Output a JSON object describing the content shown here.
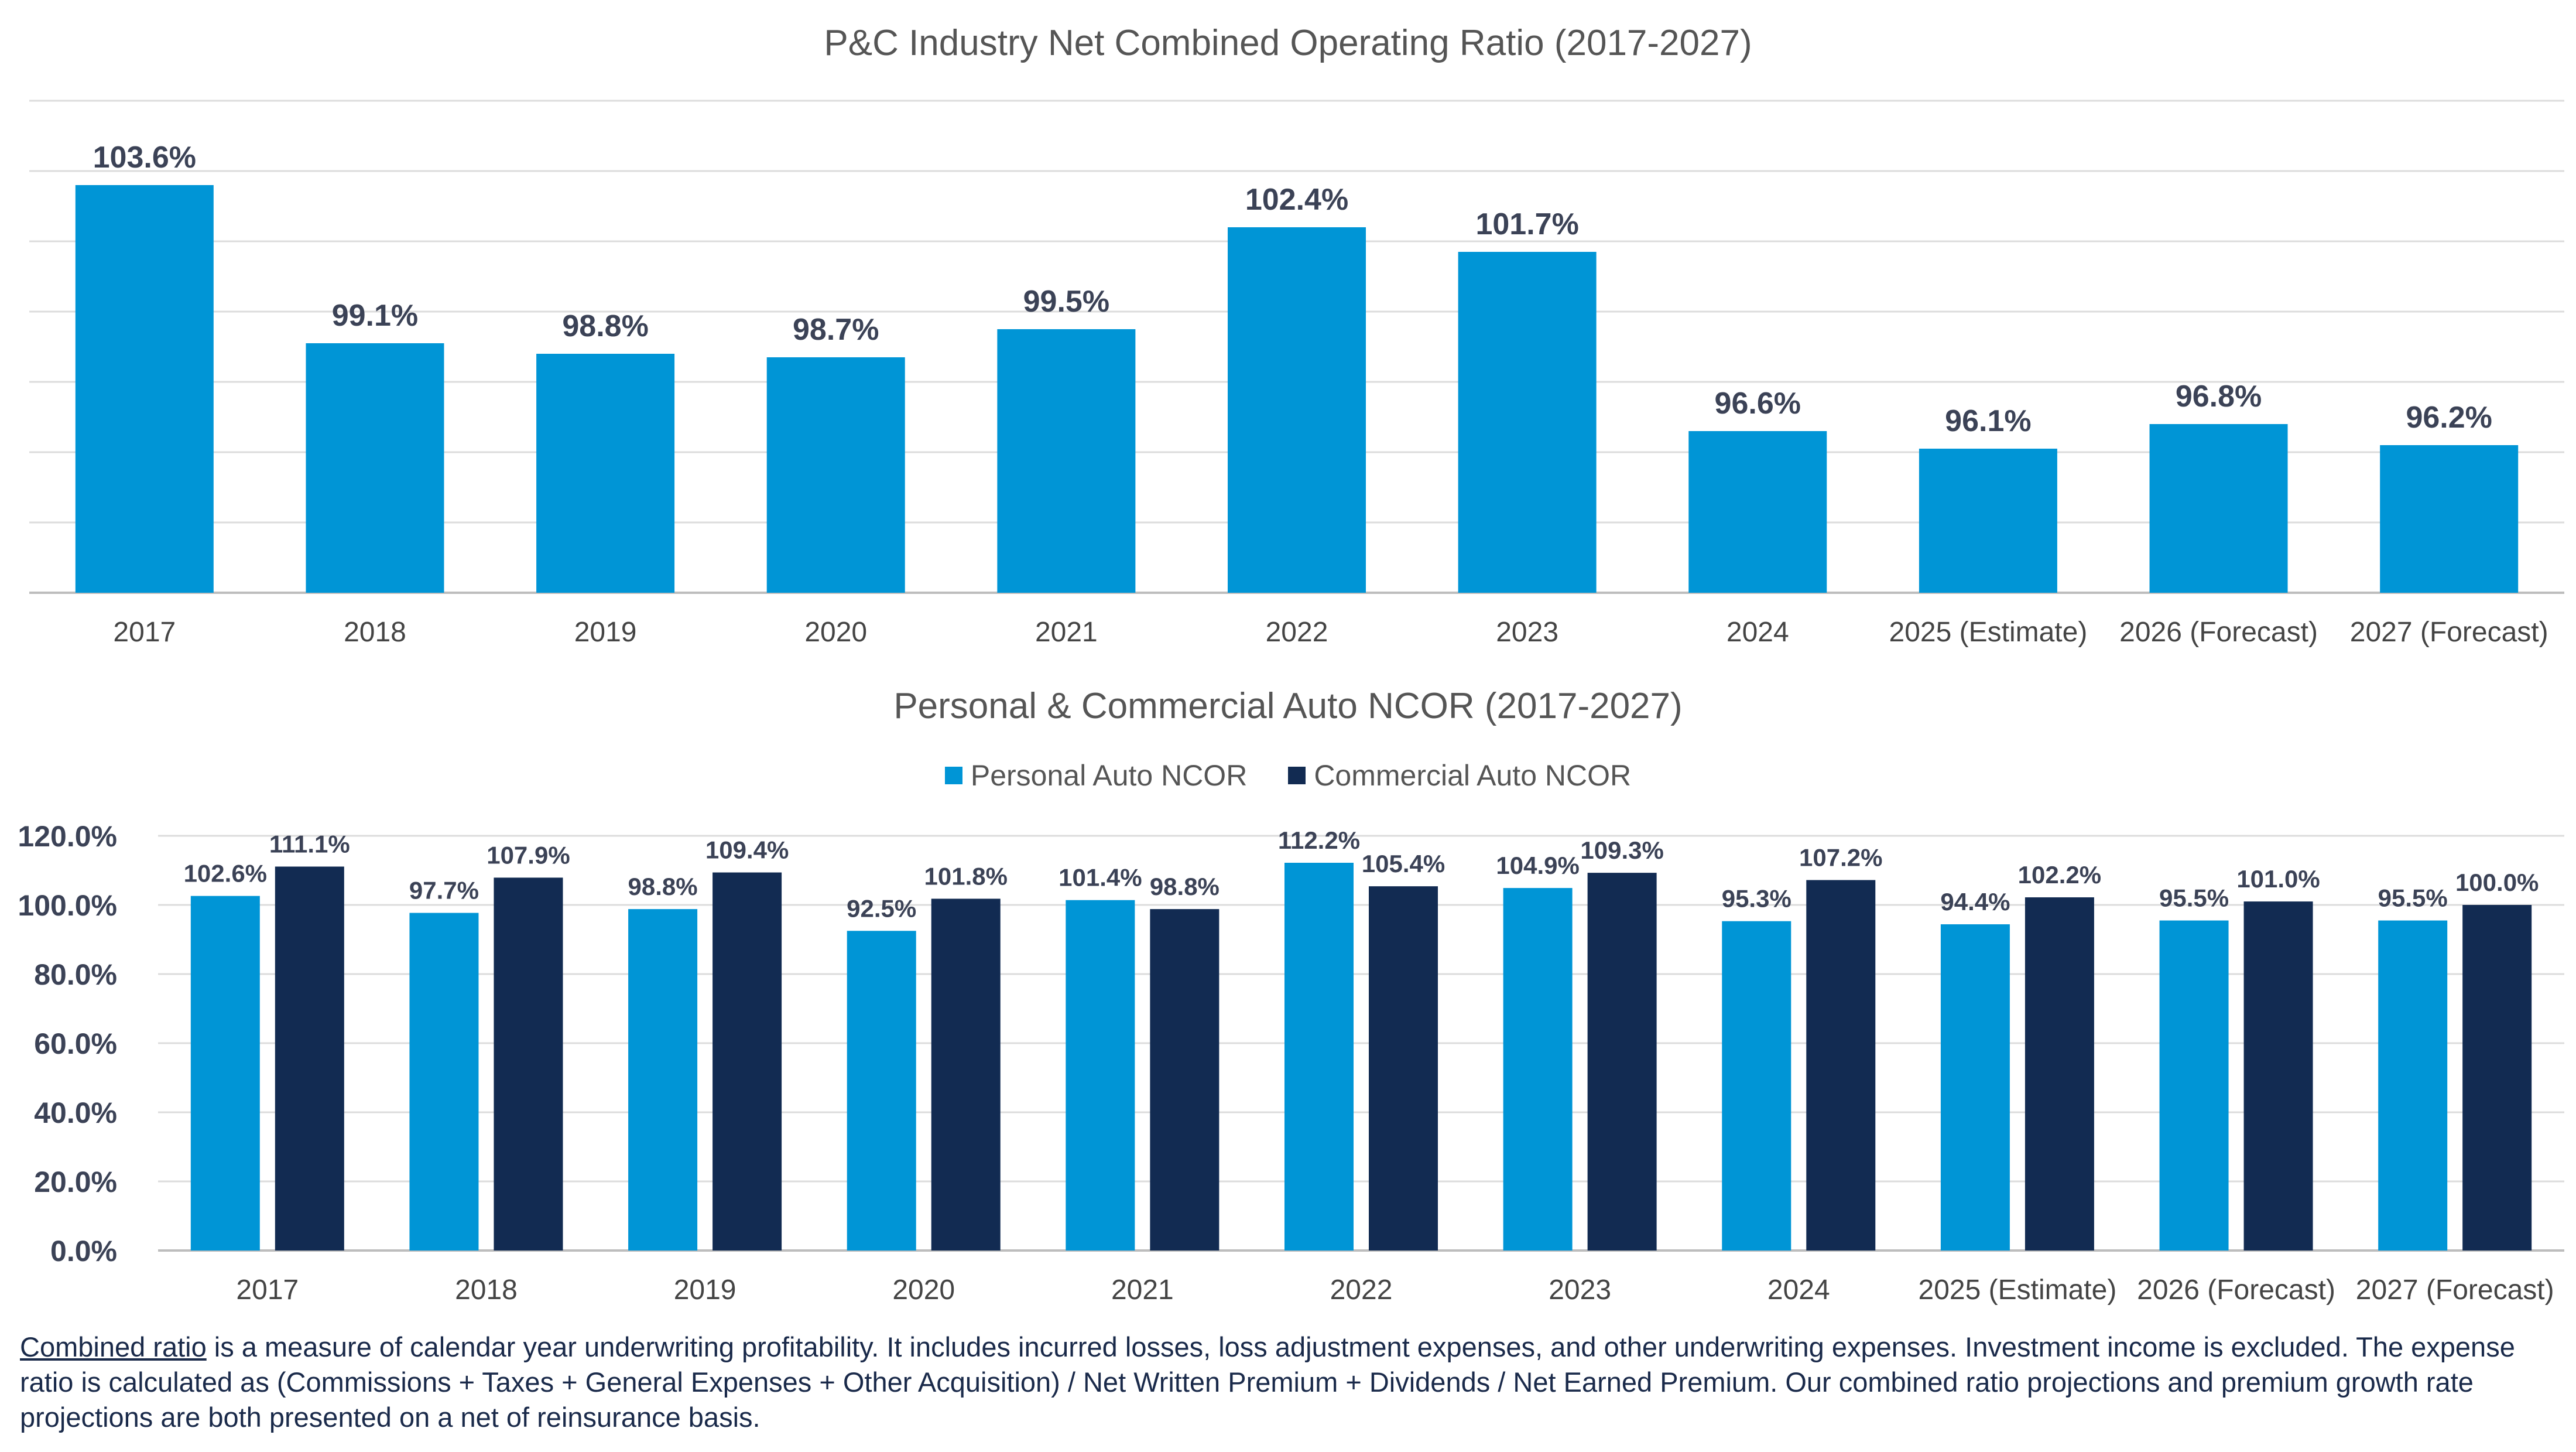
{
  "footnote": {
    "link_text": "Combined ratio",
    "text": " is a measure of calendar year underwriting profitability. It includes incurred losses, loss adjustment expenses, and other underwriting expenses. Investment income is excluded. The expense ratio is calculated as (Commissions + Taxes + General Expenses + Other Acquisition) / Net Written Premium + Dividends / Net Earned Premium. Our combined ratio projections and premium growth rate projections are both presented on a net of reinsurance basis."
  },
  "chart_data": [
    {
      "type": "bar",
      "title": "P&C Industry Net Combined Operating Ratio (2017-2027)",
      "categories": [
        "2017",
        "2018",
        "2019",
        "2020",
        "2021",
        "2022",
        "2023",
        "2024",
        "2025 (Estimate)",
        "2026 (Forecast)",
        "2027 (Forecast)"
      ],
      "values": [
        103.6,
        99.1,
        98.8,
        98.7,
        99.5,
        102.4,
        101.7,
        96.6,
        96.1,
        96.8,
        96.2
      ],
      "labels": [
        "103.6%",
        "99.1%",
        "98.8%",
        "98.7%",
        "99.5%",
        "102.4%",
        "101.7%",
        "96.6%",
        "96.1%",
        "96.8%",
        "96.2%"
      ],
      "ylim": [
        92,
        106
      ],
      "grid": true,
      "y_tick_labels_shown": false,
      "color": "#0095d6"
    },
    {
      "type": "bar",
      "title": "Personal & Commercial Auto NCOR (2017-2027)",
      "categories": [
        "2017",
        "2018",
        "2019",
        "2020",
        "2021",
        "2022",
        "2023",
        "2024",
        "2025 (Estimate)",
        "2026 (Forecast)",
        "2027 (Forecast)"
      ],
      "series": [
        {
          "name": "Personal Auto NCOR",
          "color": "#0095d6",
          "values": [
            102.6,
            97.7,
            98.8,
            92.5,
            101.4,
            112.2,
            104.9,
            95.3,
            94.4,
            95.5,
            95.5
          ],
          "labels": [
            "102.6%",
            "97.7%",
            "98.8%",
            "92.5%",
            "101.4%",
            "112.2%",
            "104.9%",
            "95.3%",
            "94.4%",
            "95.5%",
            "95.5%"
          ]
        },
        {
          "name": "Commercial Auto NCOR",
          "color": "#122b52",
          "values": [
            111.1,
            107.9,
            109.4,
            101.8,
            98.8,
            105.4,
            109.3,
            107.2,
            102.2,
            101.0,
            100.0
          ],
          "labels": [
            "111.1%",
            "107.9%",
            "109.4%",
            "101.8%",
            "98.8%",
            "105.4%",
            "109.3%",
            "107.2%",
            "102.2%",
            "101.0%",
            "100.0%"
          ]
        }
      ],
      "ylim": [
        0,
        120
      ],
      "y_ticks": [
        "0.0%",
        "20.0%",
        "40.0%",
        "60.0%",
        "80.0%",
        "100.0%",
        "120.0%"
      ],
      "legend": "top-center",
      "grid": true
    }
  ]
}
